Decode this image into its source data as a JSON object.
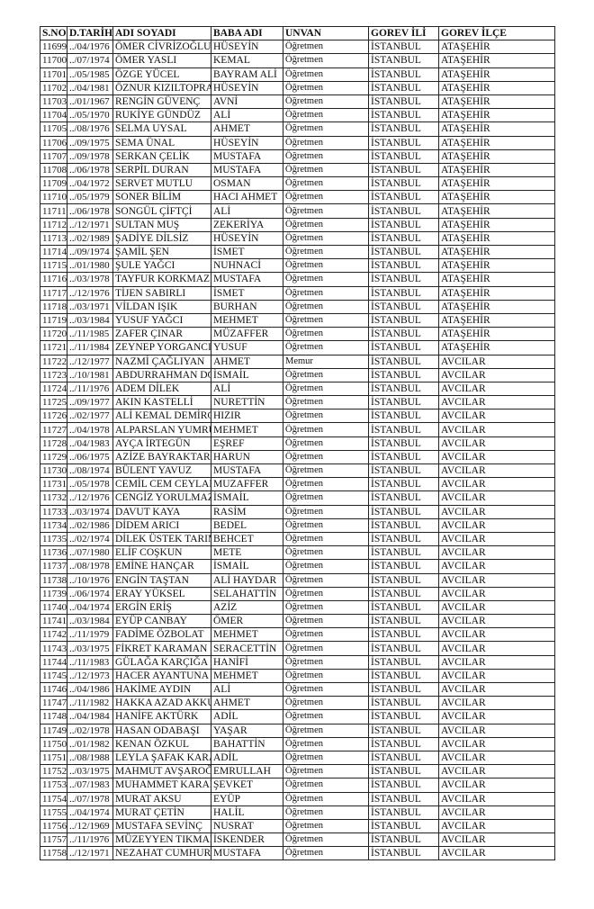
{
  "headers": [
    "S.NO",
    "D.TARİHİ",
    "ADI SOYADI",
    "BABA ADI",
    "UNVAN",
    "GOREV İLİ",
    "GOREV İLÇE"
  ],
  "rows": [
    [
      "11699",
      "../04/1976",
      "ÖMER CİVRİZOĞLU",
      "HÜSEYİN",
      "Öğretmen",
      "İSTANBUL",
      "ATAŞEHİR"
    ],
    [
      "11700",
      "../07/1974",
      "ÖMER YASLI",
      "KEMAL",
      "Öğretmen",
      "İSTANBUL",
      "ATAŞEHİR"
    ],
    [
      "11701",
      "../05/1985",
      "ÖZGE YÜCEL",
      "BAYRAM ALİ",
      "Öğretmen",
      "İSTANBUL",
      "ATAŞEHİR"
    ],
    [
      "11702",
      "../04/1981",
      "ÖZNUR KIZILTOPRAK",
      "HÜSEYİN",
      "Öğretmen",
      "İSTANBUL",
      "ATAŞEHİR"
    ],
    [
      "11703",
      "../01/1967",
      "RENGİN GÜVENÇ",
      "AVNİ",
      "Öğretmen",
      "İSTANBUL",
      "ATAŞEHİR"
    ],
    [
      "11704",
      "../05/1970",
      "RUKİYE GÜNDÜZ",
      "ALİ",
      "Öğretmen",
      "İSTANBUL",
      "ATAŞEHİR"
    ],
    [
      "11705",
      "../08/1976",
      "SELMA UYSAL",
      "AHMET",
      "Öğretmen",
      "İSTANBUL",
      "ATAŞEHİR"
    ],
    [
      "11706",
      "../09/1975",
      "SEMA ÜNAL",
      "HÜSEYİN",
      "Öğretmen",
      "İSTANBUL",
      "ATAŞEHİR"
    ],
    [
      "11707",
      "../09/1978",
      "SERKAN ÇELİK",
      "MUSTAFA",
      "Öğretmen",
      "İSTANBUL",
      "ATAŞEHİR"
    ],
    [
      "11708",
      "../06/1978",
      "SERPİL DURAN",
      "MUSTAFA",
      "Öğretmen",
      "İSTANBUL",
      "ATAŞEHİR"
    ],
    [
      "11709",
      "../04/1972",
      "SERVET MUTLU",
      "OSMAN",
      "Öğretmen",
      "İSTANBUL",
      "ATAŞEHİR"
    ],
    [
      "11710",
      "../05/1979",
      "SONER BİLİM",
      "HACI AHMET",
      "Öğretmen",
      "İSTANBUL",
      "ATAŞEHİR"
    ],
    [
      "11711",
      "../06/1978",
      "SONGÜL ÇİFTÇİ",
      "ALİ",
      "Öğretmen",
      "İSTANBUL",
      "ATAŞEHİR"
    ],
    [
      "11712",
      "../12/1971",
      "SULTAN MUŞ",
      "ZEKERİYA",
      "Öğretmen",
      "İSTANBUL",
      "ATAŞEHİR"
    ],
    [
      "11713",
      "../02/1989",
      "ŞADİYE DİLSİZ",
      "HÜSEYİN",
      "Öğretmen",
      "İSTANBUL",
      "ATAŞEHİR"
    ],
    [
      "11714",
      "../09/1974",
      "ŞAMİL ŞEN",
      "İSMET",
      "Öğretmen",
      "İSTANBUL",
      "ATAŞEHİR"
    ],
    [
      "11715",
      "../01/1980",
      "ŞULE YAĞCI",
      "NUHNACİ",
      "Öğretmen",
      "İSTANBUL",
      "ATAŞEHİR"
    ],
    [
      "11716",
      "../03/1978",
      "TAYFUR KORKMAZ",
      "MUSTAFA",
      "Öğretmen",
      "İSTANBUL",
      "ATAŞEHİR"
    ],
    [
      "11717",
      "../12/1976",
      "TİJEN SABIRLI",
      "İSMET",
      "Öğretmen",
      "İSTANBUL",
      "ATAŞEHİR"
    ],
    [
      "11718",
      "../03/1971",
      "VİLDAN IŞIK",
      "BURHAN",
      "Öğretmen",
      "İSTANBUL",
      "ATAŞEHİR"
    ],
    [
      "11719",
      "../03/1984",
      "YUSUF YAĞCI",
      "MEHMET",
      "Öğretmen",
      "İSTANBUL",
      "ATAŞEHİR"
    ],
    [
      "11720",
      "../11/1985",
      "ZAFER ÇINAR",
      "MÜZAFFER",
      "Öğretmen",
      "İSTANBUL",
      "ATAŞEHİR"
    ],
    [
      "11721",
      "../11/1984",
      "ZEYNEP YORGANCI",
      "YUSUF",
      "Öğretmen",
      "İSTANBUL",
      "ATAŞEHİR"
    ],
    [
      "11722",
      "../12/1977",
      "NAZMİ ÇAĞLIYAN",
      "AHMET",
      "Memur",
      "İSTANBUL",
      "AVCILAR"
    ],
    [
      "11723",
      "../10/1981",
      "ABDURRAHMAN DOĞAN",
      "İSMAİL",
      "Öğretmen",
      "İSTANBUL",
      "AVCILAR"
    ],
    [
      "11724",
      "../11/1976",
      "ADEM DİLEK",
      "ALİ",
      "Öğretmen",
      "İSTANBUL",
      "AVCILAR"
    ],
    [
      "11725",
      "../09/1977",
      "AKIN KASTELLİ",
      "NURETTİN",
      "Öğretmen",
      "İSTANBUL",
      "AVCILAR"
    ],
    [
      "11726",
      "../02/1977",
      "ALİ KEMAL DEMİRCİ",
      "HIZIR",
      "Öğretmen",
      "İSTANBUL",
      "AVCILAR"
    ],
    [
      "11727",
      "../04/1978",
      "ALPARSLAN YUMRUTAŞ",
      "MEHMET",
      "Öğretmen",
      "İSTANBUL",
      "AVCILAR"
    ],
    [
      "11728",
      "../04/1983",
      "AYÇA İRTEGÜN",
      "EŞREF",
      "Öğretmen",
      "İSTANBUL",
      "AVCILAR"
    ],
    [
      "11729",
      "../06/1975",
      "AZİZE BAYRAKTAR",
      "HARUN",
      "Öğretmen",
      "İSTANBUL",
      "AVCILAR"
    ],
    [
      "11730",
      "../08/1974",
      "BÜLENT YAVUZ",
      "MUSTAFA",
      "Öğretmen",
      "İSTANBUL",
      "AVCILAR"
    ],
    [
      "11731",
      "../05/1978",
      "CEMİL CEM CEYLAN",
      "MUZAFFER",
      "Öğretmen",
      "İSTANBUL",
      "AVCILAR"
    ],
    [
      "11732",
      "../12/1976",
      "CENGİZ YORULMAZ",
      "İSMAİL",
      "Öğretmen",
      "İSTANBUL",
      "AVCILAR"
    ],
    [
      "11733",
      "../03/1974",
      "DAVUT KAYA",
      "RASİM",
      "Öğretmen",
      "İSTANBUL",
      "AVCILAR"
    ],
    [
      "11734",
      "../02/1986",
      "DİDEM ARICI",
      "BEDEL",
      "Öğretmen",
      "İSTANBUL",
      "AVCILAR"
    ],
    [
      "11735",
      "../02/1974",
      "DİLEK ÜSTEK TARIM",
      "BEHCET",
      "Öğretmen",
      "İSTANBUL",
      "AVCILAR"
    ],
    [
      "11736",
      "../07/1980",
      "ELİF COŞKUN",
      "METE",
      "Öğretmen",
      "İSTANBUL",
      "AVCILAR"
    ],
    [
      "11737",
      "../08/1978",
      "EMİNE HANÇAR",
      "İSMAİL",
      "Öğretmen",
      "İSTANBUL",
      "AVCILAR"
    ],
    [
      "11738",
      "../10/1976",
      "ENGİN TAŞTAN",
      "ALİ HAYDAR",
      "Öğretmen",
      "İSTANBUL",
      "AVCILAR"
    ],
    [
      "11739",
      "../06/1974",
      "ERAY YÜKSEL",
      "SELAHATTİN",
      "Öğretmen",
      "İSTANBUL",
      "AVCILAR"
    ],
    [
      "11740",
      "../04/1974",
      "ERGİN ERİŞ",
      "AZİZ",
      "Öğretmen",
      "İSTANBUL",
      "AVCILAR"
    ],
    [
      "11741",
      "../03/1984",
      "EYÜP CANBAY",
      "ÖMER",
      "Öğretmen",
      "İSTANBUL",
      "AVCILAR"
    ],
    [
      "11742",
      "../11/1979",
      "FADİME ÖZBOLAT",
      "MEHMET",
      "Öğretmen",
      "İSTANBUL",
      "AVCILAR"
    ],
    [
      "11743",
      "../03/1975",
      "FİKRET KARAMAN",
      "SERACETTİN",
      "Öğretmen",
      "İSTANBUL",
      "AVCILAR"
    ],
    [
      "11744",
      "../11/1983",
      "GÜLAĞA KARÇIĞA",
      "HANİFİ",
      "Öğretmen",
      "İSTANBUL",
      "AVCILAR"
    ],
    [
      "11745",
      "../12/1973",
      "HACER AYANTUNA",
      "MEHMET",
      "Öğretmen",
      "İSTANBUL",
      "AVCILAR"
    ],
    [
      "11746",
      "../04/1986",
      "HAKİME AYDIN",
      "ALİ",
      "Öğretmen",
      "İSTANBUL",
      "AVCILAR"
    ],
    [
      "11747",
      "../11/1982",
      "HAKKA AZAD AKKUŞ",
      "AHMET",
      "Öğretmen",
      "İSTANBUL",
      "AVCILAR"
    ],
    [
      "11748",
      "../04/1984",
      "HANİFE AKTÜRK",
      "ADİL",
      "Öğretmen",
      "İSTANBUL",
      "AVCILAR"
    ],
    [
      "11749",
      "../02/1978",
      "HASAN ODABAŞI",
      "YAŞAR",
      "Öğretmen",
      "İSTANBUL",
      "AVCILAR"
    ],
    [
      "11750",
      "../01/1982",
      "KENAN ÖZKUL",
      "BAHATTİN",
      "Öğretmen",
      "İSTANBUL",
      "AVCILAR"
    ],
    [
      "11751",
      "../08/1988",
      "LEYLA ŞAFAK KARAKULAK",
      "ADİL",
      "Öğretmen",
      "İSTANBUL",
      "AVCILAR"
    ],
    [
      "11752",
      "../03/1975",
      "MAHMUT AVŞAROĞLU",
      "EMRULLAH",
      "Öğretmen",
      "İSTANBUL",
      "AVCILAR"
    ],
    [
      "11753",
      "../07/1983",
      "MUHAMMET KARAMAN",
      "ŞEVKET",
      "Öğretmen",
      "İSTANBUL",
      "AVCILAR"
    ],
    [
      "11754",
      "../07/1978",
      "MURAT AKSU",
      "EYÜP",
      "Öğretmen",
      "İSTANBUL",
      "AVCILAR"
    ],
    [
      "11755",
      "../04/1974",
      "MURAT ÇETİN",
      "HALİL",
      "Öğretmen",
      "İSTANBUL",
      "AVCILAR"
    ],
    [
      "11756",
      "../12/1969",
      "MUSTAFA SEVİNÇ",
      "NUSRAT",
      "Öğretmen",
      "İSTANBUL",
      "AVCILAR"
    ],
    [
      "11757",
      "../11/1976",
      "MÜZEYYEN TIKMAN",
      "İSKENDER",
      "Öğretmen",
      "İSTANBUL",
      "AVCILAR"
    ],
    [
      "11758",
      "../12/1971",
      "NEZAHAT CUMHUR",
      "MUSTAFA",
      "Öğretmen",
      "İSTANBUL",
      "AVCILAR"
    ]
  ]
}
